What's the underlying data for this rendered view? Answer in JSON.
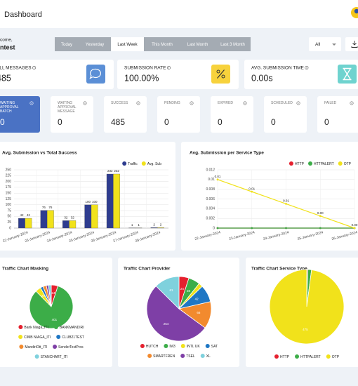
{
  "header": {
    "title": "Dashboard"
  },
  "welcome": {
    "greeting": "come,",
    "name": "ntest"
  },
  "date_filters": {
    "options": [
      "Today",
      "Yesterday",
      "Last Week",
      "This Month",
      "Last Month",
      "Last 3 Month"
    ],
    "active": "Last Week"
  },
  "channel_select": "All",
  "summary_cards": [
    {
      "label": "ALL MESSAGES",
      "value": 485
    },
    {
      "label": "SUBMISSION RATE",
      "value": "100.00%"
    },
    {
      "label": "AVG. SUBMISSION TIME",
      "value": "0.00s"
    }
  ],
  "status_cards": [
    {
      "label": "WAITING APPROVAL BATCH",
      "value": 0
    },
    {
      "label": "WAITING APPROVAL MESSAGE",
      "value": 0
    },
    {
      "label": "SUCCESS",
      "value": 485
    },
    {
      "label": "PENDING",
      "value": 0
    },
    {
      "label": "EXPIRED",
      "value": 0
    },
    {
      "label": "SCHEDULED",
      "value": 0
    },
    {
      "label": "FAILED",
      "value": 0
    }
  ],
  "chart_data": [
    {
      "type": "bar",
      "title": "Avg. Submission vs Total Success",
      "categories": [
        "22-January-2024",
        "23-January-2024",
        "24-January-2024",
        "25-January-2024",
        "26-January-2024",
        "27-January-2024",
        "28-January-2024"
      ],
      "series": [
        {
          "name": "Traffic",
          "color": "#2e3c8f",
          "values": [
            42,
            76,
            32,
            100,
            232,
            1,
            2
          ]
        },
        {
          "name": "Avg. Sub",
          "color": "#f1e21b",
          "values": [
            42,
            76,
            32,
            100,
            232,
            1,
            2
          ]
        }
      ],
      "ylim": [
        0,
        250
      ],
      "yticks": [
        0,
        25,
        50,
        75,
        100,
        125,
        150,
        175,
        200,
        225,
        250
      ],
      "grid": true,
      "legend": "top-right"
    },
    {
      "type": "line",
      "title": "Avg. Submission per Service Type",
      "categories": [
        "22-January-2024",
        "23-January-2024",
        "24-January-2024",
        "25-January-2024",
        "26-January-2024"
      ],
      "series": [
        {
          "name": "HTTP",
          "color": "#e5202e",
          "values": [
            0,
            0,
            0,
            0,
            0
          ]
        },
        {
          "name": "HTTPALERT",
          "color": "#3cad48",
          "values": [
            0,
            0,
            0,
            0,
            0
          ]
        },
        {
          "name": "OTP",
          "color": "#f1e21b",
          "values": [
            0.01,
            0.0075,
            0.005,
            0.0025,
            0
          ],
          "value_labels": [
            "0.01",
            "0.01",
            "0.01",
            "0.00",
            "0.00"
          ]
        }
      ],
      "ylim": [
        0,
        0.012
      ],
      "yticks": [
        0,
        0.002,
        0.004,
        0.006,
        0.008,
        0.01,
        0.012
      ],
      "grid": true,
      "legend": "top-right"
    },
    {
      "type": "pie",
      "title": "Traffic Chart Masking",
      "categories": [
        "Bank Niaga_ITI",
        "BANKMANDIRI",
        "CIMB NIAGA_ITI",
        "CLUB21TEST",
        "MandiriOtt_ITI",
        "SenderTestPros",
        "STANCHART_ITI"
      ],
      "values": [
        24,
        401,
        20,
        10,
        12,
        8,
        10
      ],
      "colors": [
        "#e5202e",
        "#3cad48",
        "#f1e21b",
        "#1f77c4",
        "#f28a2e",
        "#7e3fa6",
        "#7fd1dd"
      ],
      "legend": "bottom"
    },
    {
      "type": "pie",
      "title": "Traffic Chart Provider",
      "categories": [
        "HUTCH",
        "IM3",
        "INTL UK",
        "SAT",
        "SMARTFREN",
        "TSEL",
        "XL"
      ],
      "values": [
        24,
        28,
        10,
        42,
        66,
        254,
        61
      ],
      "colors": [
        "#e5202e",
        "#3cad48",
        "#f1e21b",
        "#1f77c4",
        "#f28a2e",
        "#7e3fa6",
        "#7fd1dd"
      ],
      "legend": "bottom"
    },
    {
      "type": "pie",
      "title": "Traffic Chart Service Type",
      "categories": [
        "HTTP",
        "HTTPALERT",
        "OTP"
      ],
      "values": [
        2,
        8,
        475
      ],
      "colors": [
        "#e5202e",
        "#3cad48",
        "#f1e21b"
      ],
      "legend": "bottom"
    }
  ]
}
